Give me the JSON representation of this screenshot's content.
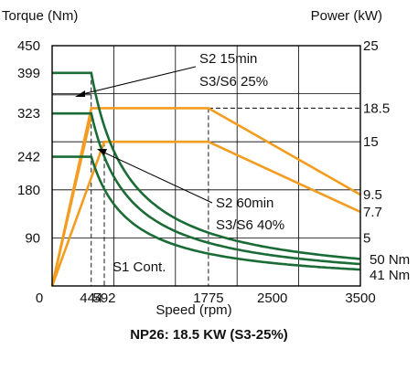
{
  "chart_data": {
    "type": "line",
    "caption": "NP26: 18.5 KW (S3-25%)",
    "xlabel": "Speed (rpm)",
    "ylabel_left": "Torque (Nm)",
    "ylabel_right": "Power (kW)",
    "xlim": [
      0,
      3500
    ],
    "ylim_left": [
      0,
      450
    ],
    "ylim_right": [
      0,
      25
    ],
    "x_ticks": [
      {
        "value": 0,
        "label": "0"
      },
      {
        "value": 444,
        "label": "444"
      },
      {
        "value": 592,
        "label": "592"
      },
      {
        "value": 1775,
        "label": "1775"
      },
      {
        "value": 2500,
        "label": "2500"
      },
      {
        "value": 3500,
        "label": "3500"
      }
    ],
    "y_ticks_left": [
      {
        "value": 90,
        "label": "90"
      },
      {
        "value": 180,
        "label": "180"
      },
      {
        "value": 242,
        "label": "242"
      },
      {
        "value": 323,
        "label": "323"
      },
      {
        "value": 399,
        "label": "399"
      },
      {
        "value": 450,
        "label": "450"
      }
    ],
    "y_ticks_right": [
      {
        "value": 5,
        "label": "5"
      },
      {
        "value": 7.7,
        "label": "7.7"
      },
      {
        "value": 9.5,
        "label": "9.5"
      },
      {
        "value": 15,
        "label": "15"
      },
      {
        "value": 18.5,
        "label": "18.5"
      },
      {
        "value": 25,
        "label": "25"
      }
    ],
    "grid": true,
    "colors": {
      "torque": "#1a6b36",
      "power": "#f39c1f",
      "grid": "#000000"
    },
    "torque_series": [
      {
        "torque": 399,
        "base_speed": 444,
        "power_kw": 18.5
      },
      {
        "torque": 323,
        "base_speed": 444,
        "power_kw": 15
      },
      {
        "torque": 242,
        "base_speed": 444,
        "power_kw": 11.25
      }
    ],
    "power_series": [
      {
        "points": [
          [
            0,
            0
          ],
          [
            444,
            18.5
          ],
          [
            1775,
            18.5
          ],
          [
            3500,
            9.5
          ]
        ]
      },
      {
        "points": [
          [
            0,
            0
          ],
          [
            592,
            15
          ],
          [
            1775,
            15
          ],
          [
            3500,
            7.7
          ]
        ]
      }
    ],
    "annotations": {
      "s2_15_line1": "S2 15min",
      "s2_15_line2": "S3/S6 25%",
      "s2_60_line1": "S2 60min",
      "s2_60_line2": "S3/S6 40%",
      "s1": "S1 Cont.",
      "nm50": "50 Nm",
      "nm41": "41 Nm"
    }
  }
}
